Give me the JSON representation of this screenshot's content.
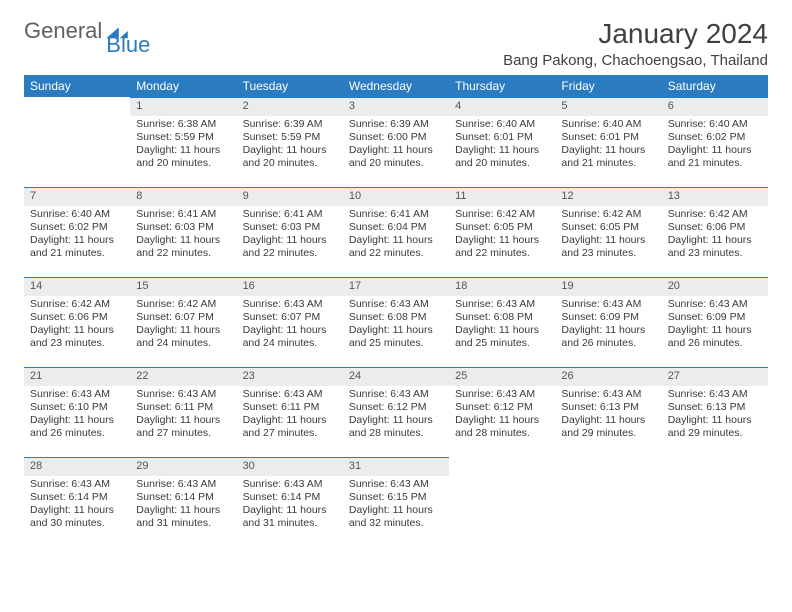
{
  "logo": {
    "part1": "General",
    "part2": "Blue"
  },
  "title": "January 2024",
  "location": "Bang Pakong, Chachoengsao, Thailand",
  "colors": {
    "brand": "#2a7bbf",
    "header_bg": "#2a7bbf",
    "header_fg": "#ffffff",
    "daynum_bg": "#ececec",
    "daynum_border": "#2a7bbf",
    "text": "#3a3a3a"
  },
  "weekdays": [
    "Sunday",
    "Monday",
    "Tuesday",
    "Wednesday",
    "Thursday",
    "Friday",
    "Saturday"
  ],
  "start_offset": 1,
  "days": [
    {
      "n": 1,
      "sr": "6:38 AM",
      "ss": "5:59 PM",
      "dl": "11 hours and 20 minutes."
    },
    {
      "n": 2,
      "sr": "6:39 AM",
      "ss": "5:59 PM",
      "dl": "11 hours and 20 minutes."
    },
    {
      "n": 3,
      "sr": "6:39 AM",
      "ss": "6:00 PM",
      "dl": "11 hours and 20 minutes."
    },
    {
      "n": 4,
      "sr": "6:40 AM",
      "ss": "6:01 PM",
      "dl": "11 hours and 20 minutes."
    },
    {
      "n": 5,
      "sr": "6:40 AM",
      "ss": "6:01 PM",
      "dl": "11 hours and 21 minutes."
    },
    {
      "n": 6,
      "sr": "6:40 AM",
      "ss": "6:02 PM",
      "dl": "11 hours and 21 minutes."
    },
    {
      "n": 7,
      "sr": "6:40 AM",
      "ss": "6:02 PM",
      "dl": "11 hours and 21 minutes."
    },
    {
      "n": 8,
      "sr": "6:41 AM",
      "ss": "6:03 PM",
      "dl": "11 hours and 22 minutes."
    },
    {
      "n": 9,
      "sr": "6:41 AM",
      "ss": "6:03 PM",
      "dl": "11 hours and 22 minutes."
    },
    {
      "n": 10,
      "sr": "6:41 AM",
      "ss": "6:04 PM",
      "dl": "11 hours and 22 minutes."
    },
    {
      "n": 11,
      "sr": "6:42 AM",
      "ss": "6:05 PM",
      "dl": "11 hours and 22 minutes."
    },
    {
      "n": 12,
      "sr": "6:42 AM",
      "ss": "6:05 PM",
      "dl": "11 hours and 23 minutes."
    },
    {
      "n": 13,
      "sr": "6:42 AM",
      "ss": "6:06 PM",
      "dl": "11 hours and 23 minutes."
    },
    {
      "n": 14,
      "sr": "6:42 AM",
      "ss": "6:06 PM",
      "dl": "11 hours and 23 minutes."
    },
    {
      "n": 15,
      "sr": "6:42 AM",
      "ss": "6:07 PM",
      "dl": "11 hours and 24 minutes."
    },
    {
      "n": 16,
      "sr": "6:43 AM",
      "ss": "6:07 PM",
      "dl": "11 hours and 24 minutes."
    },
    {
      "n": 17,
      "sr": "6:43 AM",
      "ss": "6:08 PM",
      "dl": "11 hours and 25 minutes."
    },
    {
      "n": 18,
      "sr": "6:43 AM",
      "ss": "6:08 PM",
      "dl": "11 hours and 25 minutes."
    },
    {
      "n": 19,
      "sr": "6:43 AM",
      "ss": "6:09 PM",
      "dl": "11 hours and 26 minutes."
    },
    {
      "n": 20,
      "sr": "6:43 AM",
      "ss": "6:09 PM",
      "dl": "11 hours and 26 minutes."
    },
    {
      "n": 21,
      "sr": "6:43 AM",
      "ss": "6:10 PM",
      "dl": "11 hours and 26 minutes."
    },
    {
      "n": 22,
      "sr": "6:43 AM",
      "ss": "6:11 PM",
      "dl": "11 hours and 27 minutes."
    },
    {
      "n": 23,
      "sr": "6:43 AM",
      "ss": "6:11 PM",
      "dl": "11 hours and 27 minutes."
    },
    {
      "n": 24,
      "sr": "6:43 AM",
      "ss": "6:12 PM",
      "dl": "11 hours and 28 minutes."
    },
    {
      "n": 25,
      "sr": "6:43 AM",
      "ss": "6:12 PM",
      "dl": "11 hours and 28 minutes."
    },
    {
      "n": 26,
      "sr": "6:43 AM",
      "ss": "6:13 PM",
      "dl": "11 hours and 29 minutes."
    },
    {
      "n": 27,
      "sr": "6:43 AM",
      "ss": "6:13 PM",
      "dl": "11 hours and 29 minutes."
    },
    {
      "n": 28,
      "sr": "6:43 AM",
      "ss": "6:14 PM",
      "dl": "11 hours and 30 minutes."
    },
    {
      "n": 29,
      "sr": "6:43 AM",
      "ss": "6:14 PM",
      "dl": "11 hours and 31 minutes."
    },
    {
      "n": 30,
      "sr": "6:43 AM",
      "ss": "6:14 PM",
      "dl": "11 hours and 31 minutes."
    },
    {
      "n": 31,
      "sr": "6:43 AM",
      "ss": "6:15 PM",
      "dl": "11 hours and 32 minutes."
    }
  ],
  "labels": {
    "sunrise": "Sunrise:",
    "sunset": "Sunset:",
    "daylight": "Daylight:"
  }
}
